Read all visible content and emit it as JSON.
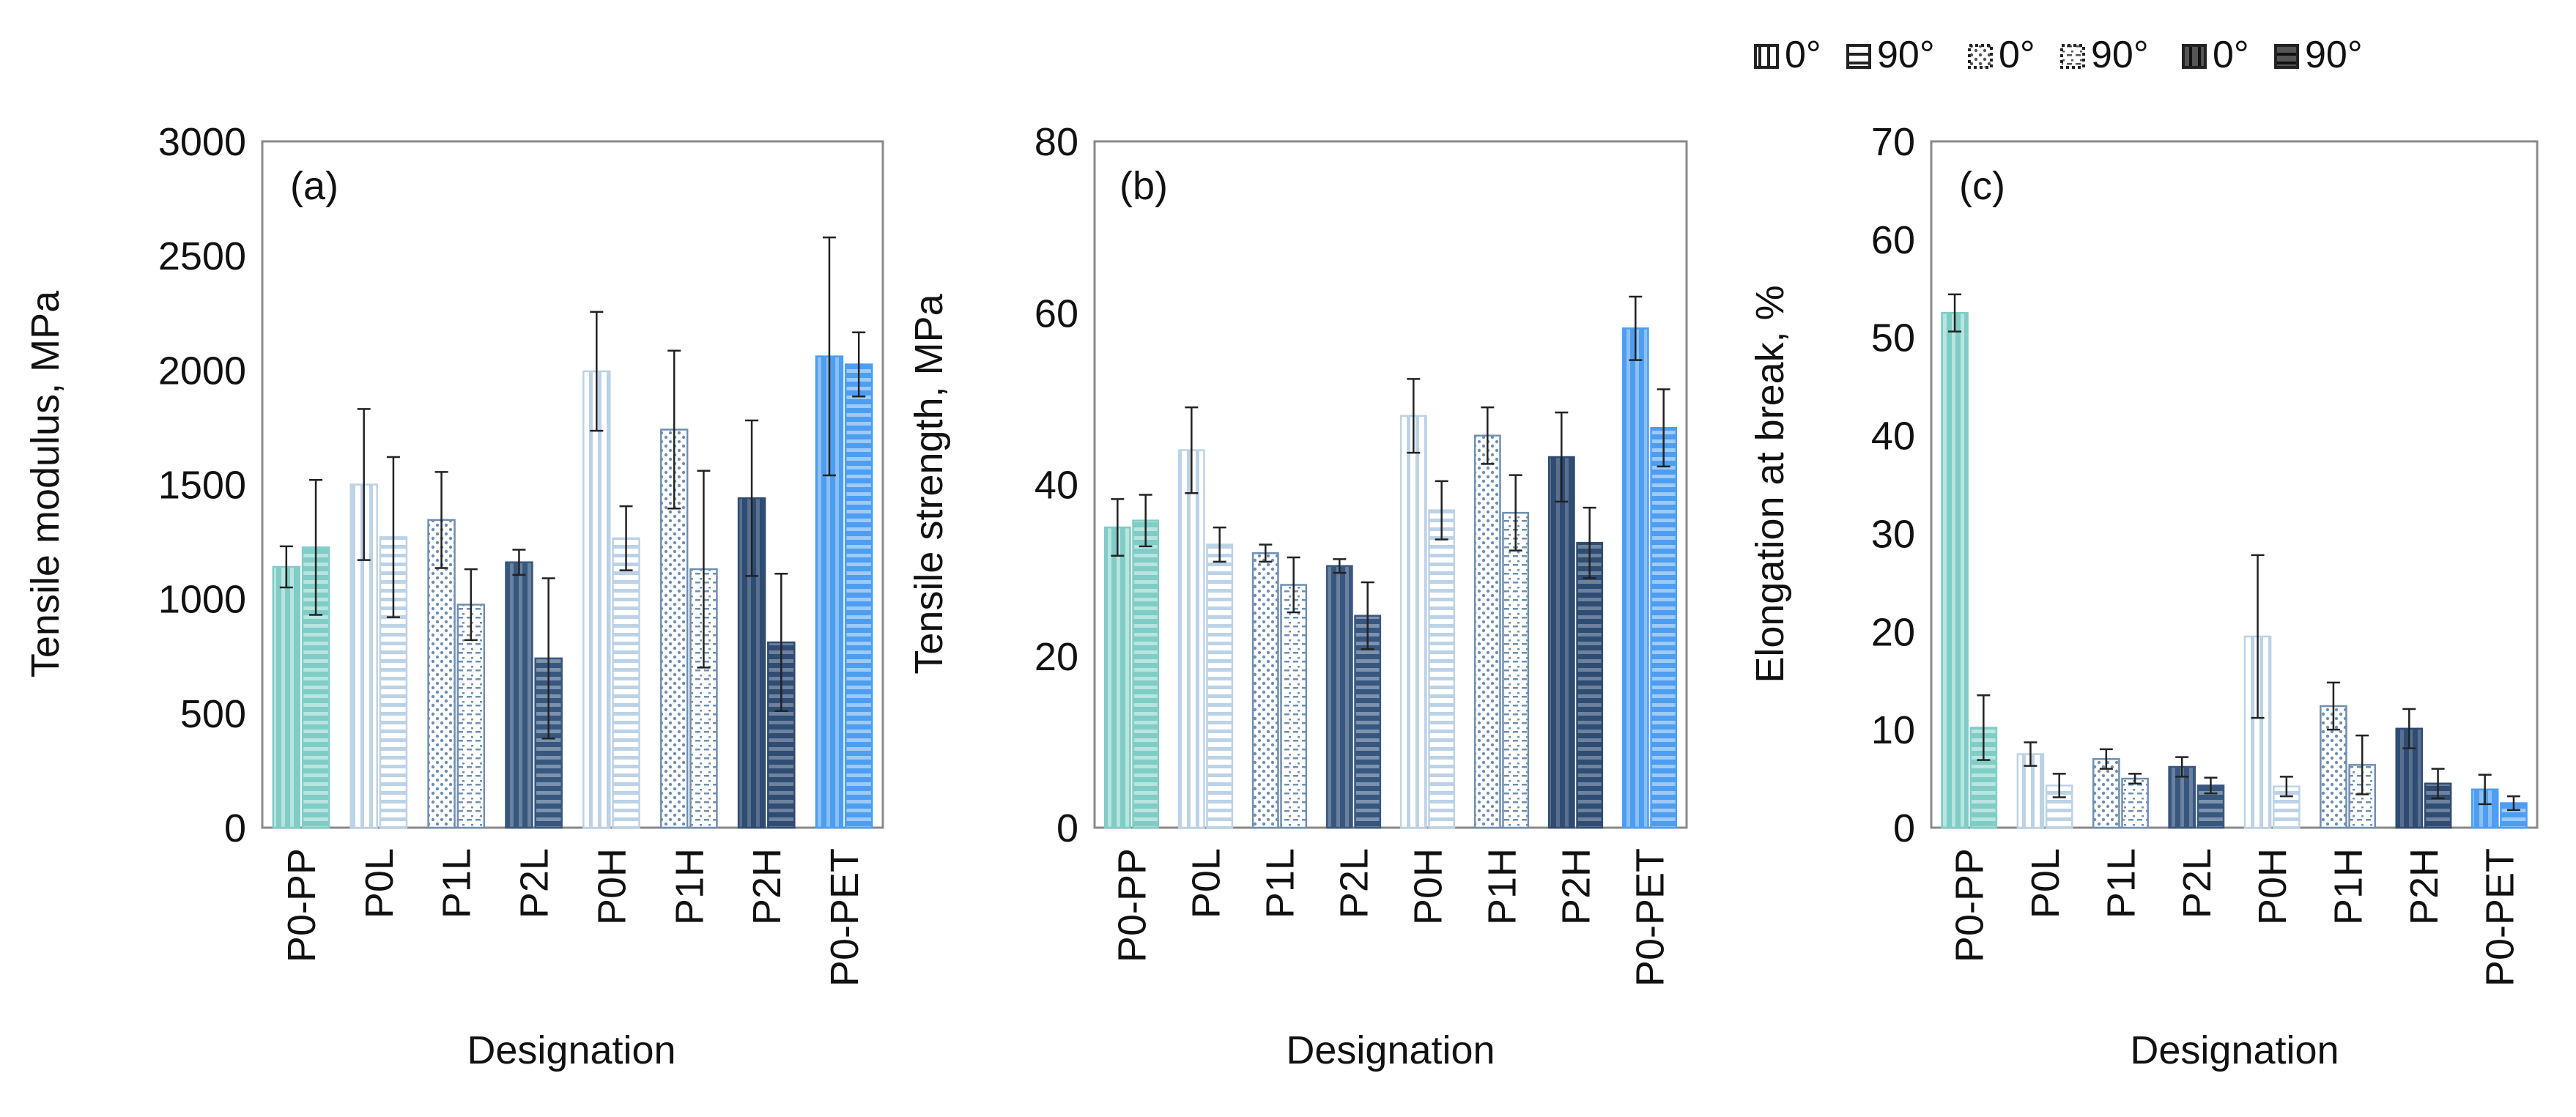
{
  "legend": {
    "placement": "top-right",
    "entries": [
      {
        "label": "0°",
        "pattern": "vertical"
      },
      {
        "label": "90°",
        "pattern": "horizontal"
      },
      {
        "label": "0°",
        "pattern": "dots"
      },
      {
        "label": "90°",
        "pattern": "dots-dashes"
      },
      {
        "label": "0°",
        "pattern": "dark-vertical"
      },
      {
        "label": "90°",
        "pattern": "dark-horizontal"
      }
    ]
  },
  "colors": {
    "PP": "#7fcdc6",
    "L": "#bcd2e6",
    "P1L": "#6f8fb2",
    "P2L": "#38577f",
    "H": "#bcd2e6",
    "P1H": "#6f8fb2",
    "P2H": "#2f4c73",
    "PET": "#4d9ef0",
    "axis": "#808080",
    "error": "#222222"
  },
  "chart_data": [
    {
      "type": "bar",
      "panel_label": "(a)",
      "title": "",
      "xlabel": "Designation",
      "ylabel": "Tensile modulus, MPa",
      "ylim": [
        0,
        3000
      ],
      "yticks": [
        0,
        500,
        1000,
        1500,
        2000,
        2500,
        3000
      ],
      "categories": [
        "P0-PP",
        "P0L",
        "P1L",
        "P2L",
        "P0H",
        "P1H",
        "P2H",
        "P0-PET"
      ],
      "series": [
        {
          "name": "0°",
          "values": [
            1140,
            1500,
            1345,
            1160,
            1995,
            1740,
            1440,
            2060
          ],
          "errors": [
            90,
            330,
            210,
            55,
            260,
            345,
            340,
            520
          ]
        },
        {
          "name": "90°",
          "values": [
            1225,
            1270,
            975,
            740,
            1265,
            1130,
            810,
            2025
          ],
          "errors": [
            295,
            350,
            155,
            350,
            140,
            430,
            300,
            140
          ]
        }
      ]
    },
    {
      "type": "bar",
      "panel_label": "(b)",
      "title": "",
      "xlabel": "Designation",
      "ylabel": "Tensile strength, MPa",
      "ylim": [
        0,
        80
      ],
      "yticks": [
        0,
        20,
        40,
        60,
        80
      ],
      "categories": [
        "P0-PP",
        "P0L",
        "P1L",
        "P2L",
        "P0H",
        "P1H",
        "P2H",
        "P0-PET"
      ],
      "series": [
        {
          "name": "0°",
          "values": [
            35,
            44,
            32,
            30.5,
            48,
            45.7,
            43.2,
            58.2
          ],
          "errors": [
            3.3,
            5,
            1,
            0.8,
            4.3,
            3.3,
            5.2,
            3.7
          ]
        },
        {
          "name": "90°",
          "values": [
            35.8,
            33,
            28.3,
            24.7,
            37,
            36.7,
            33.2,
            46.6
          ],
          "errors": [
            3,
            2,
            3.2,
            3.9,
            3.4,
            4.4,
            4.1,
            4.5
          ]
        }
      ]
    },
    {
      "type": "bar",
      "panel_label": "(c)",
      "title": "",
      "xlabel": "Designation",
      "ylabel": "Elongation at break, %",
      "ylim": [
        0,
        70
      ],
      "yticks": [
        0,
        10,
        20,
        30,
        40,
        50,
        60,
        70
      ],
      "categories": [
        "P0-PP",
        "P0L",
        "P1L",
        "P2L",
        "P0H",
        "P1H",
        "P2H",
        "P0-PET"
      ],
      "series": [
        {
          "name": "0°",
          "values": [
            52.5,
            7.5,
            7,
            6.2,
            19.5,
            12.4,
            10.1,
            3.9
          ],
          "errors": [
            1.9,
            1.2,
            1,
            1,
            8.3,
            2.4,
            2,
            1.5
          ]
        },
        {
          "name": "90°",
          "values": [
            10.2,
            4.3,
            5,
            4.3,
            4.2,
            6.4,
            4.5,
            2.5
          ],
          "errors": [
            3.3,
            1.2,
            0.5,
            0.8,
            1,
            3,
            1.5,
            0.7
          ]
        }
      ]
    }
  ]
}
